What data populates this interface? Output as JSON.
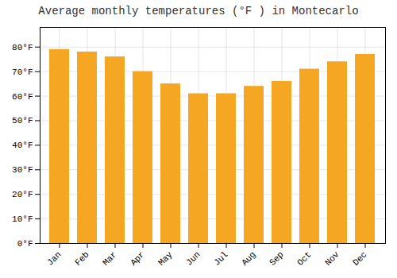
{
  "chart_data": {
    "type": "bar",
    "title": "Average monthly temperatures (°F ) in Montecarlo",
    "categories": [
      "Jan",
      "Feb",
      "Mar",
      "Apr",
      "May",
      "Jun",
      "Jul",
      "Aug",
      "Sep",
      "Oct",
      "Nov",
      "Dec"
    ],
    "values": [
      79,
      78,
      76,
      70,
      65,
      61,
      61,
      64,
      66,
      71,
      74,
      77
    ],
    "color": "#F5A623",
    "ylim": [
      0,
      88
    ],
    "yticks": [
      {
        "value": 0,
        "label": "0°F"
      },
      {
        "value": 10,
        "label": "10°F"
      },
      {
        "value": 20,
        "label": "20°F"
      },
      {
        "value": 30,
        "label": "30°F"
      },
      {
        "value": 40,
        "label": "40°F"
      },
      {
        "value": 50,
        "label": "50°F"
      },
      {
        "value": 60,
        "label": "60°F"
      },
      {
        "value": 70,
        "label": "70°F"
      },
      {
        "value": 80,
        "label": "80°F"
      }
    ],
    "grid": true
  }
}
